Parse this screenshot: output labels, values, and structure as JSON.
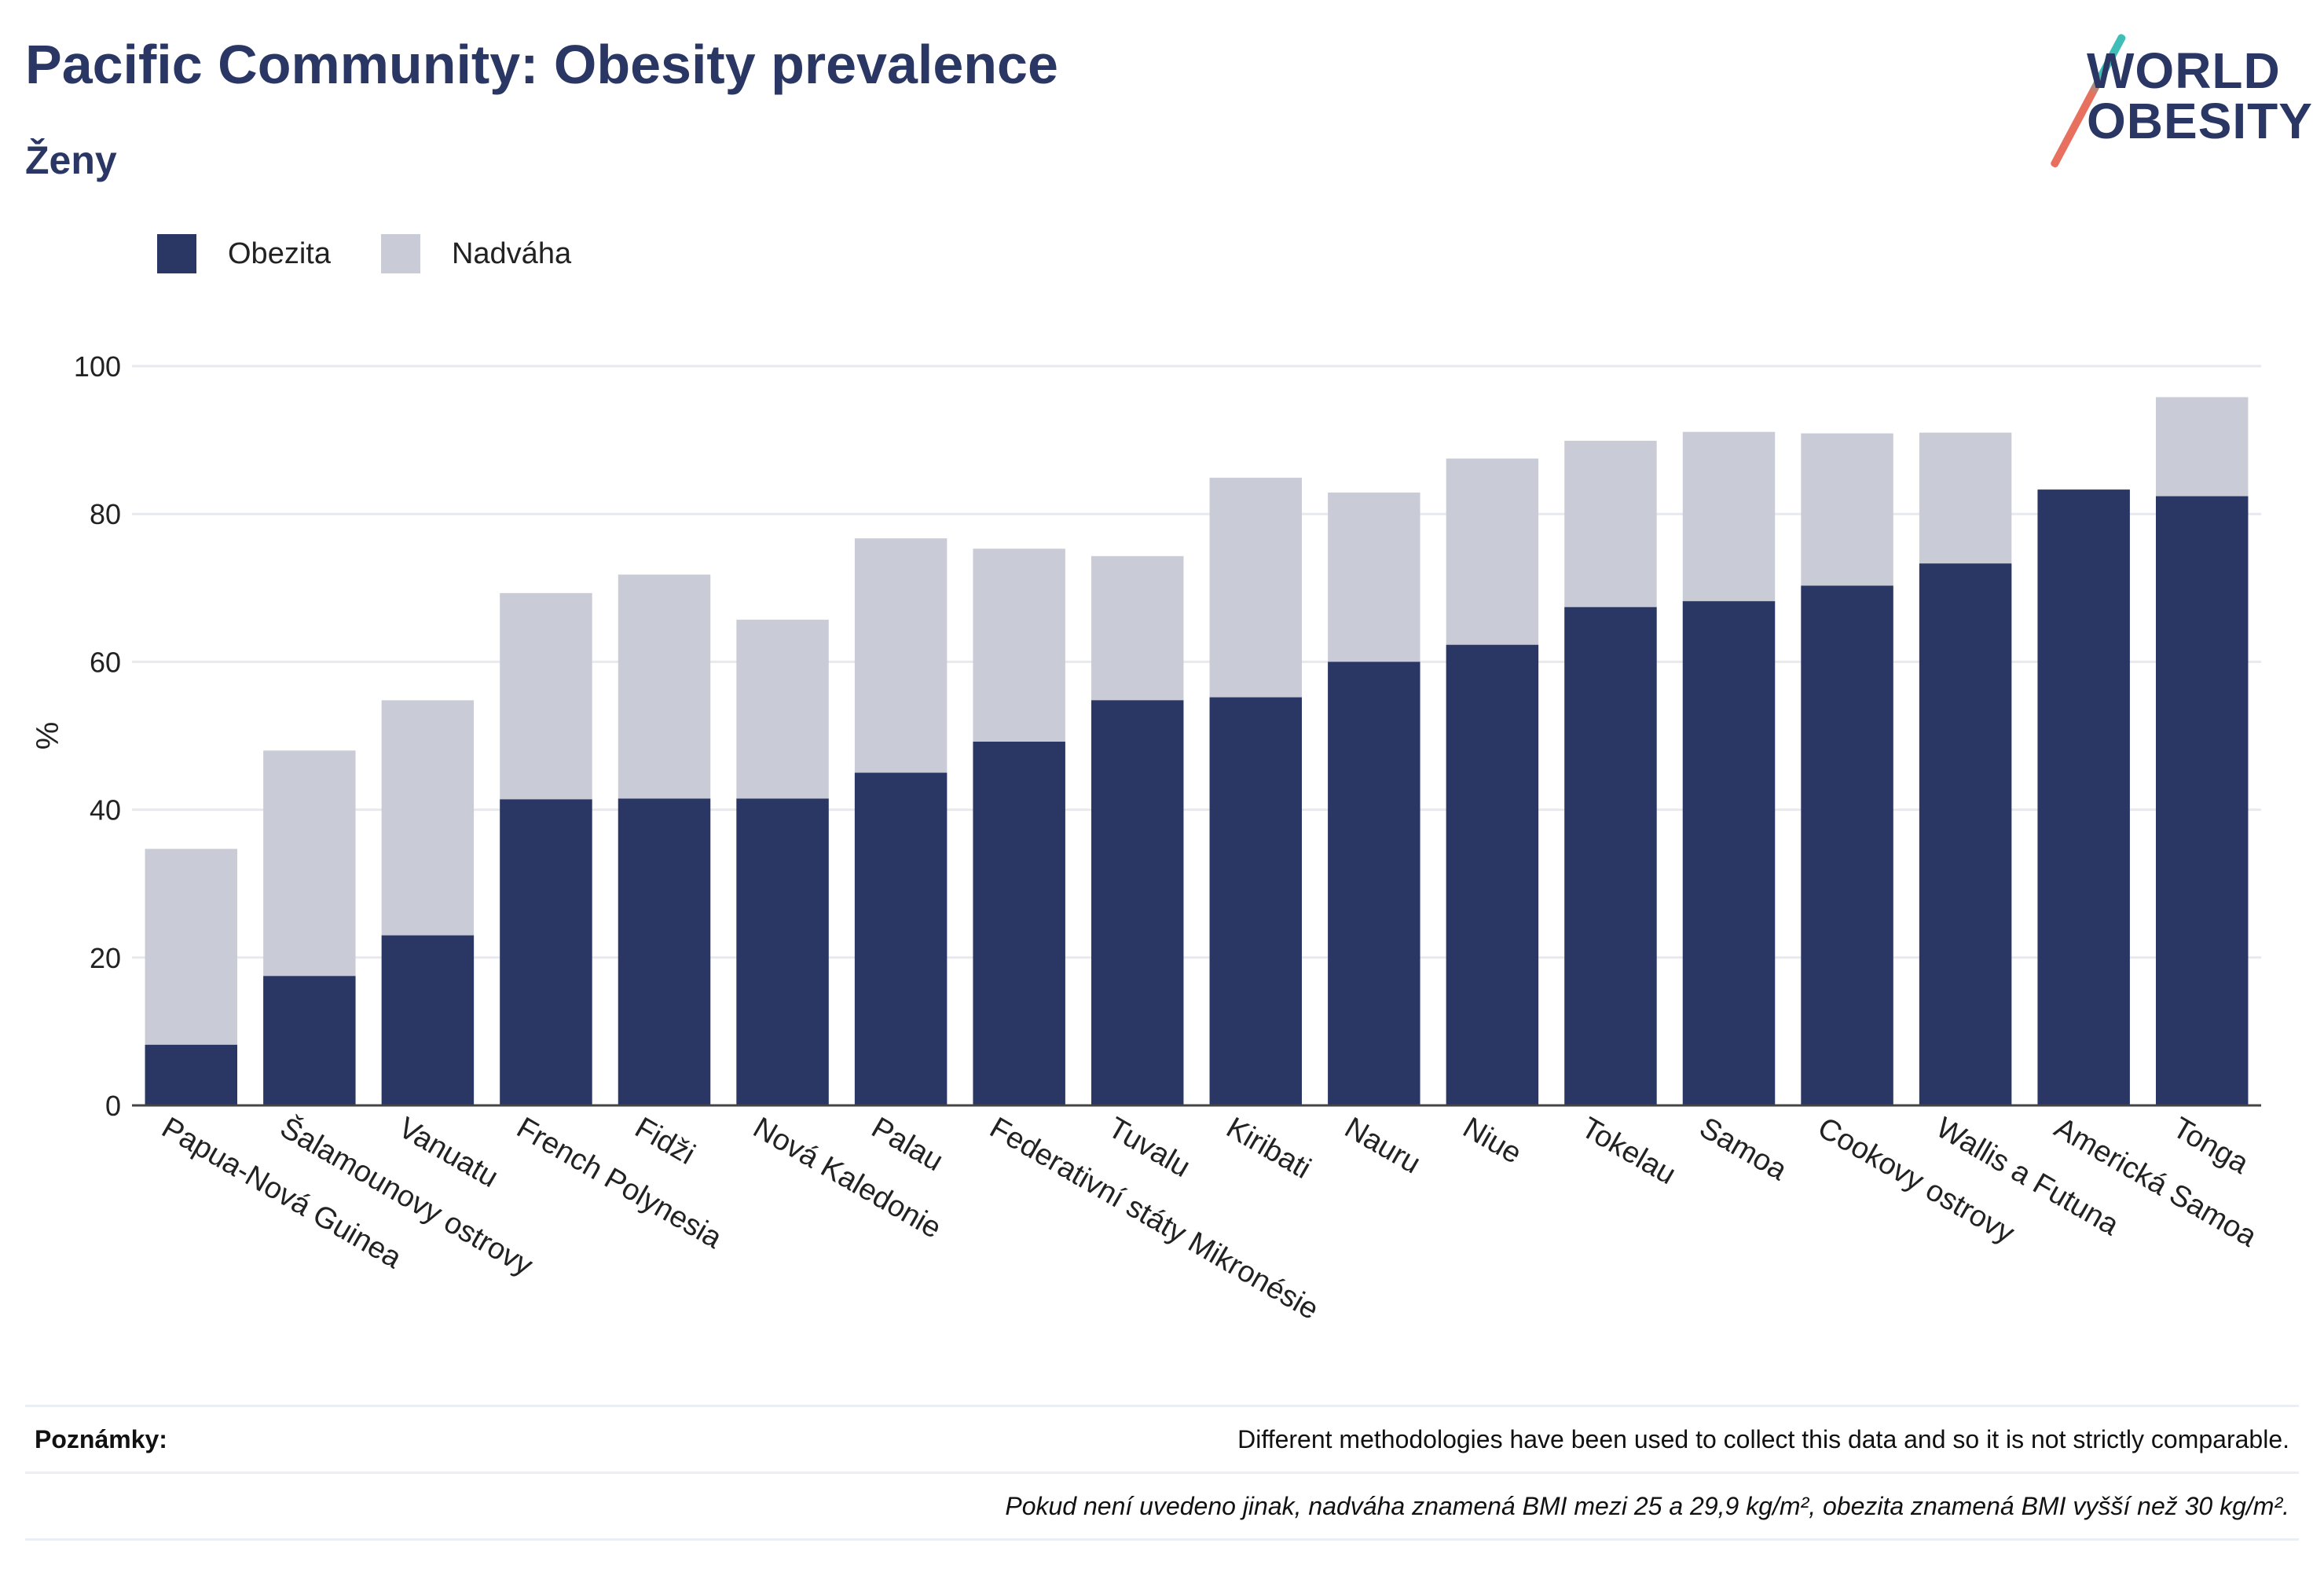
{
  "title": "Pacific Community: Obesity prevalence",
  "subtitle": "Ženy",
  "logo": {
    "line1": "WORLD",
    "line2": "OBESITY"
  },
  "legend": [
    {
      "label": "Obezita",
      "color": "#2a3663"
    },
    {
      "label": "Nadváha",
      "color": "#c9cbd7"
    }
  ],
  "notes": {
    "label": "Poznámky:",
    "text1": "Different methodologies have been used to collect this data and so it is not strictly comparable.",
    "text2": "Pokud není uvedeno jinak, nadváha znamená BMI mezi 25 a 29,9 kg/m², obezita znamená BMI vyšší než 30 kg/m²."
  },
  "chart_data": {
    "type": "bar",
    "stacked": "overlay",
    "ylabel": "%",
    "xlabel": "",
    "ylim": [
      0,
      100
    ],
    "yticks": [
      0,
      20,
      40,
      60,
      80,
      100
    ],
    "grid": true,
    "legend_position": "top-left",
    "categories": [
      "Papua-Nová Guinea",
      "Šalamounovy ostrovy",
      "Vanuatu",
      "French Polynesia",
      "Fidži",
      "Nová Kaledonie",
      "Palau",
      "Federativní státy Mikronésie",
      "Tuvalu",
      "Kiribati",
      "Nauru",
      "Niue",
      "Tokelau",
      "Samoa",
      "Cookovy ostrovy",
      "Wallis a Futuna",
      "Americká Samoa",
      "Tonga"
    ],
    "series": [
      {
        "name": "Obezita",
        "color": "#2a3663",
        "values": [
          8.2,
          17.5,
          23.0,
          41.4,
          41.5,
          41.5,
          45.0,
          49.2,
          54.8,
          55.2,
          60.0,
          62.3,
          67.4,
          68.2,
          70.3,
          73.3,
          83.3,
          82.4
        ]
      },
      {
        "name": "Nadváha",
        "color": "#c9cbd7",
        "values": [
          34.7,
          48.0,
          54.8,
          69.3,
          71.8,
          65.7,
          76.7,
          75.3,
          74.3,
          84.9,
          82.9,
          87.5,
          89.9,
          91.1,
          90.9,
          91.0,
          83.3,
          95.8
        ]
      }
    ]
  }
}
